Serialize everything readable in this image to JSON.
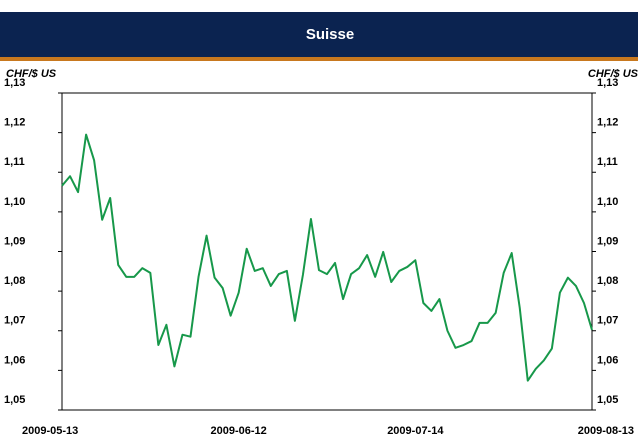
{
  "chart_data": {
    "type": "line",
    "title": "Suisse",
    "ylabel": "CHF/$ US",
    "y2label": "CHF/$ US",
    "categories": [
      "2009-05-13",
      null,
      null,
      null,
      null,
      null,
      null,
      null,
      null,
      null,
      null,
      null,
      null,
      null,
      null,
      null,
      null,
      null,
      null,
      null,
      null,
      null,
      "2009-06-12",
      null,
      null,
      null,
      null,
      null,
      null,
      null,
      null,
      null,
      null,
      null,
      null,
      null,
      null,
      null,
      null,
      null,
      null,
      null,
      null,
      null,
      "2009-07-14",
      null,
      null,
      null,
      null,
      null,
      null,
      null,
      null,
      null,
      null,
      null,
      null,
      null,
      null,
      null,
      null,
      null,
      null,
      null,
      null,
      null,
      "2009-08-13"
    ],
    "series": [
      {
        "name": "CHF/$ US",
        "color": "#17984a",
        "values": [
          1.1066,
          1.109,
          1.105,
          1.1195,
          1.113,
          1.098,
          1.1035,
          1.0866,
          1.0836,
          1.0836,
          1.0858,
          1.0846,
          1.0664,
          1.0715,
          1.061,
          1.069,
          1.0685,
          1.0836,
          1.094,
          1.0834,
          1.0808,
          1.0738,
          1.0796,
          1.0907,
          1.0851,
          1.0858,
          1.0813,
          1.0843,
          1.0851,
          1.0725,
          1.0841,
          1.0982,
          1.0853,
          1.0843,
          1.0871,
          1.078,
          1.0843,
          1.0858,
          1.0891,
          1.0836,
          1.0899,
          1.0823,
          1.0851,
          1.0861,
          1.0878,
          1.077,
          1.075,
          1.078,
          1.07,
          1.0657,
          1.0664,
          1.0674,
          1.072,
          1.072,
          1.0745,
          1.0846,
          1.0896,
          1.0758,
          1.0574,
          1.0604,
          1.0625,
          1.0655,
          1.0796,
          1.0834,
          1.0813,
          1.077,
          1.0702
        ]
      }
    ],
    "ylim": [
      1.05,
      1.13
    ],
    "yticks": [
      {
        "value": 1.05,
        "label": "1,05"
      },
      {
        "value": 1.06,
        "label": "1,06"
      },
      {
        "value": 1.07,
        "label": "1,07"
      },
      {
        "value": 1.08,
        "label": "1,08"
      },
      {
        "value": 1.09,
        "label": "1,09"
      },
      {
        "value": 1.1,
        "label": "1,10"
      },
      {
        "value": 1.11,
        "label": "1,11"
      },
      {
        "value": 1.12,
        "label": "1,12"
      },
      {
        "value": 1.13,
        "label": "1,13"
      }
    ],
    "grid": false
  }
}
